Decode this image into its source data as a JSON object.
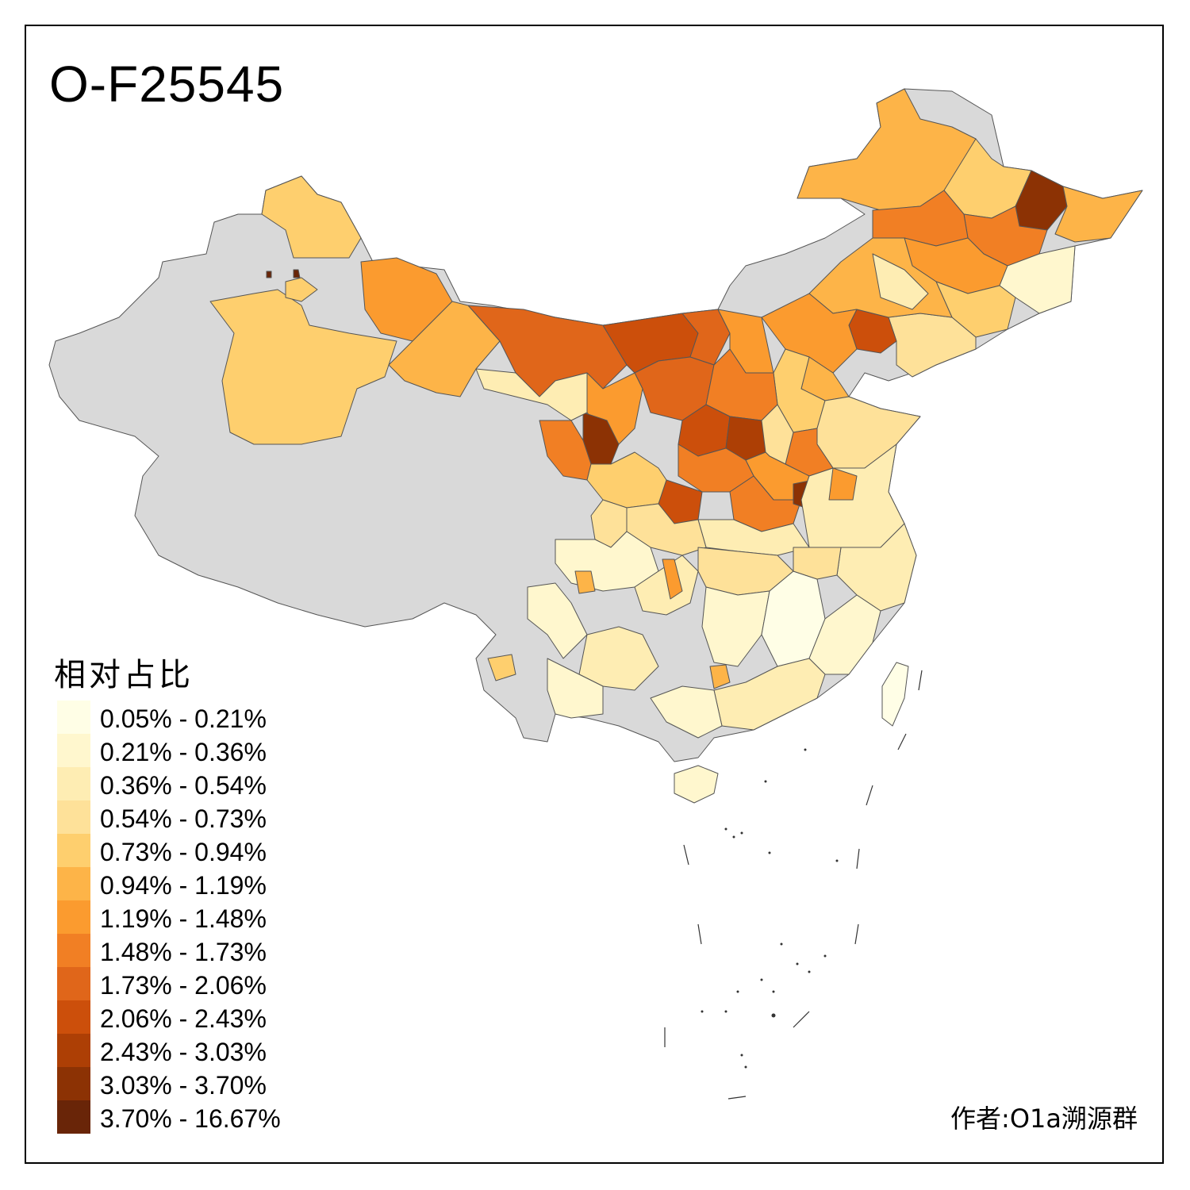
{
  "title": "O-F25545",
  "legend": {
    "title": "相对占比",
    "items": [
      {
        "label": "0.05% - 0.21%",
        "color": "#FFFEE6"
      },
      {
        "label": "0.21% - 0.36%",
        "color": "#FFF7CE"
      },
      {
        "label": "0.36% - 0.54%",
        "color": "#FEEDB3"
      },
      {
        "label": "0.54% - 0.73%",
        "color": "#FEE199"
      },
      {
        "label": "0.73% - 0.94%",
        "color": "#FECF6E"
      },
      {
        "label": "0.94% - 1.19%",
        "color": "#FDB448"
      },
      {
        "label": "1.19% - 1.48%",
        "color": "#FB9B2F"
      },
      {
        "label": "1.48% - 1.73%",
        "color": "#F17F24"
      },
      {
        "label": "1.73% - 2.06%",
        "color": "#E0661A"
      },
      {
        "label": "2.06% - 2.43%",
        "color": "#CC4F0B"
      },
      {
        "label": "2.43% - 3.03%",
        "color": "#AD3F05"
      },
      {
        "label": "3.03% - 3.70%",
        "color": "#8C3204"
      },
      {
        "label": "3.70% - 16.67%",
        "color": "#692508"
      }
    ]
  },
  "no_data_color": "#D9D9D9",
  "credit": "作者:O1a溯源群"
}
